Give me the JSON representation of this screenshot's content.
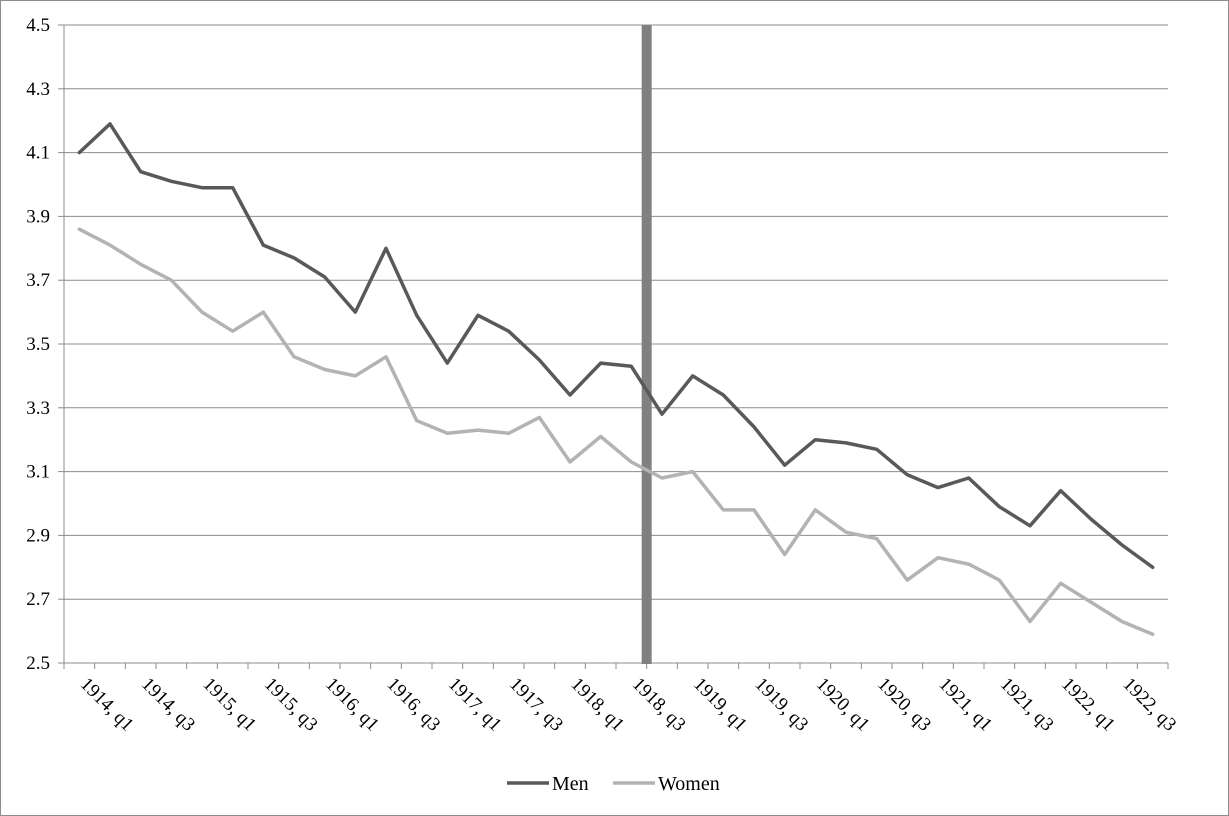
{
  "chart_data": {
    "type": "line",
    "title": "",
    "xlabel": "",
    "ylabel": "",
    "ylim": [
      2.5,
      4.5
    ],
    "yticks": [
      2.5,
      2.7,
      2.9,
      3.1,
      3.3,
      3.5,
      3.7,
      3.9,
      4.1,
      4.3,
      4.5
    ],
    "ytick_labels": [
      "2.5",
      "2.7",
      "2.9",
      "3.1",
      "3.3",
      "3.5",
      "3.7",
      "3.9",
      "4.1",
      "4.3",
      "4.5"
    ],
    "grid": "horizontal",
    "legend_position": "bottom",
    "x": [
      "1914, q1",
      "1914, q2",
      "1914, q3",
      "1914, q4",
      "1915, q1",
      "1915, q2",
      "1915, q3",
      "1915, q4",
      "1916, q1",
      "1916, q2",
      "1916, q3",
      "1916, q4",
      "1917, q1",
      "1917, q2",
      "1917, q3",
      "1917, q4",
      "1918, q1",
      "1918, q2",
      "1918, q3",
      "1918, q4",
      "1919, q1",
      "1919, q2",
      "1919, q3",
      "1919, q4",
      "1920, q1",
      "1920, q2",
      "1920, q3",
      "1920, q4",
      "1921, q1",
      "1921, q2",
      "1921, q3",
      "1921, q4",
      "1922, q1",
      "1922, q2",
      "1922, q3",
      "1922, q4"
    ],
    "xtick_labels": [
      "1914, q1",
      "1914, q3",
      "1915, q1",
      "1915, q3",
      "1916, q1",
      "1916, q3",
      "1917, q1",
      "1917, q3",
      "1918, q1",
      "1918, q3",
      "1919, q1",
      "1919, q3",
      "1920, q1",
      "1920, q3",
      "1921, q1",
      "1921, q3",
      "1922, q1",
      "1922, q3"
    ],
    "series": [
      {
        "name": "Men",
        "color": "#595959",
        "values": [
          4.1,
          4.19,
          4.04,
          4.01,
          3.99,
          3.99,
          3.81,
          3.77,
          3.71,
          3.6,
          3.8,
          3.59,
          3.44,
          3.59,
          3.54,
          3.45,
          3.34,
          3.44,
          3.43,
          3.28,
          3.4,
          3.34,
          3.24,
          3.12,
          3.2,
          3.19,
          3.17,
          3.09,
          3.05,
          3.08,
          2.99,
          2.93,
          3.04,
          2.95,
          2.87,
          2.8
        ]
      },
      {
        "name": "Women",
        "color": "#b3b3b3",
        "values": [
          3.86,
          3.81,
          3.75,
          3.7,
          3.6,
          3.54,
          3.6,
          3.46,
          3.42,
          3.4,
          3.46,
          3.26,
          3.22,
          3.23,
          3.22,
          3.27,
          3.13,
          3.21,
          3.13,
          3.08,
          3.1,
          2.98,
          2.98,
          2.84,
          2.98,
          2.91,
          2.89,
          2.76,
          2.83,
          2.81,
          2.76,
          2.63,
          2.75,
          2.69,
          2.63,
          2.59
        ]
      }
    ],
    "vertical_marker": {
      "between": [
        "1918, q3",
        "1918, q4"
      ],
      "color": "#808080"
    }
  }
}
